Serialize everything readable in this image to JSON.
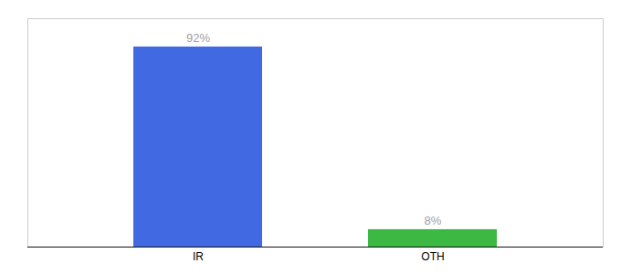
{
  "chart_data": {
    "type": "bar",
    "categories": [
      "IR",
      "OTH"
    ],
    "values": [
      92,
      8
    ],
    "value_labels": [
      "92%",
      "8%"
    ],
    "colors": [
      "#4169e1",
      "#3cb943"
    ],
    "ylim": [
      0,
      105
    ],
    "data_labels": true,
    "tick_labels": "x"
  }
}
